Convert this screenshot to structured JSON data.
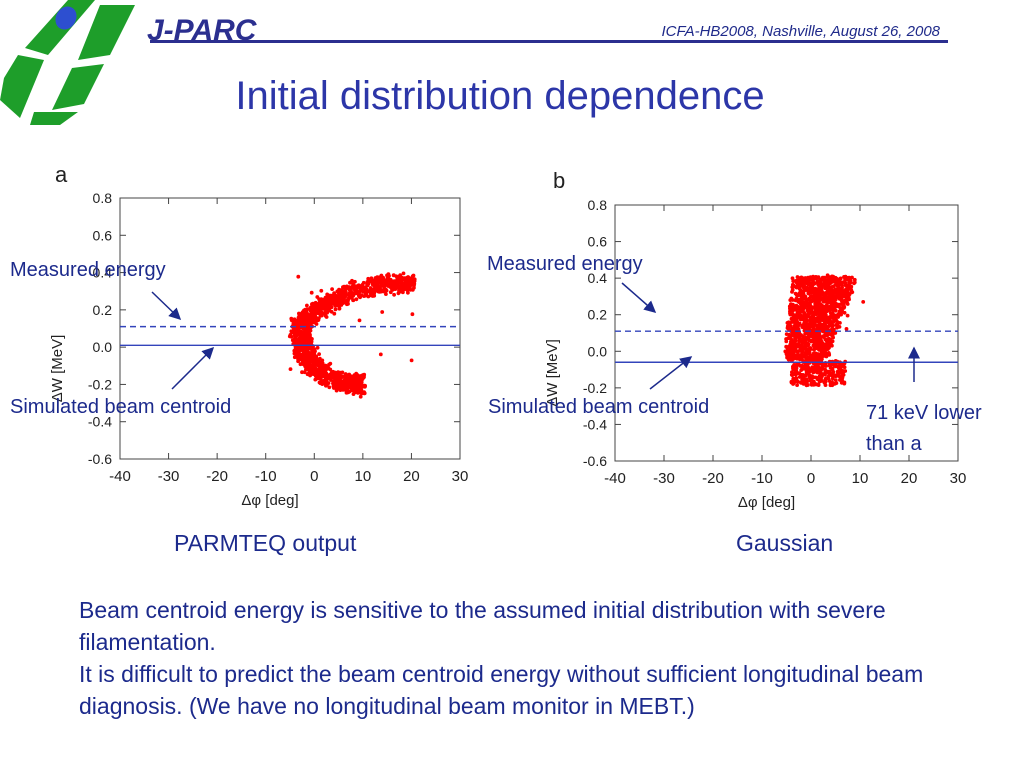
{
  "header": {
    "brand": "J-PARC",
    "conference": "ICFA-HB2008, Nashville, August 26, 2008"
  },
  "title": "Initial distribution dependence",
  "annotations": {
    "measured_a": "Measured energy",
    "simulated_a": "Simulated beam centroid",
    "measured_b": "Measured energy",
    "simulated_b": "Simulated beam centroid",
    "lower_line1": "71 keV lower",
    "lower_line2": "than a"
  },
  "body": [
    "Beam centroid energy is sensitive to the assumed initial distribution with severe filamentation.",
    "It is difficult to predict the beam centroid energy without sufficient longitudinal beam diagnosis. (We have no longitudinal beam monitor in MEBT.)"
  ],
  "colors": {
    "text_blue": "#1c2a8c",
    "title_blue": "#2c36a8",
    "line_blue": "#3344bb",
    "scatter_red": "#ff0000",
    "logo_green": "#1e9e2a"
  },
  "chart_data": [
    {
      "type": "scatter",
      "panel_label": "a",
      "caption": "PARMTEQ output",
      "xlabel": "Δφ [deg]",
      "ylabel": "ΔW [MeV]",
      "xlim": [
        -40,
        30
      ],
      "ylim": [
        -0.6,
        0.8
      ],
      "xticks": [
        -40,
        -30,
        -20,
        -10,
        0,
        10,
        20,
        30
      ],
      "yticks": [
        -0.6,
        -0.4,
        -0.2,
        0.0,
        0.2,
        0.4,
        0.6,
        0.8
      ],
      "measured_energy": 0.11,
      "simulated_centroid": 0.01,
      "cloud": {
        "x_range": [
          -5.5,
          22
        ],
        "y_range": [
          -0.23,
          0.38
        ],
        "shape": "crescent"
      },
      "grid": false
    },
    {
      "type": "scatter",
      "panel_label": "b",
      "caption": "Gaussian",
      "xlabel": "Δφ [deg]",
      "ylabel": "ΔW [MeV]",
      "xlim": [
        -40,
        30
      ],
      "ylim": [
        -0.6,
        0.8
      ],
      "xticks": [
        -40,
        -30,
        -20,
        -10,
        0,
        10,
        20,
        30
      ],
      "yticks": [
        -0.6,
        -0.4,
        -0.2,
        0.0,
        0.2,
        0.4,
        0.6,
        0.8
      ],
      "measured_energy": 0.11,
      "simulated_centroid": -0.06,
      "cloud": {
        "x_range": [
          -5,
          11
        ],
        "y_range": [
          -0.2,
          0.42
        ],
        "shape": "wedge"
      },
      "grid": false
    }
  ]
}
